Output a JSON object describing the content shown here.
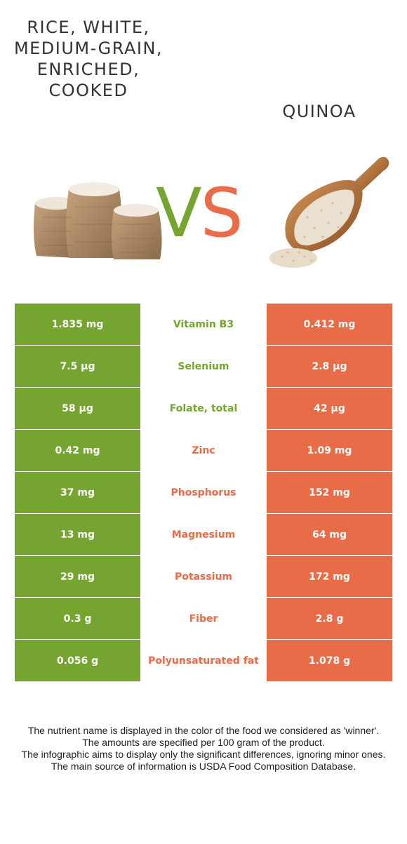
{
  "food_left": {
    "name": "Rice, white, medium-grain, enriched, cooked",
    "color": "#75a530"
  },
  "food_right": {
    "name": "Quinoa",
    "color": "#e96c48"
  },
  "vs": {
    "v": "V",
    "s": "S"
  },
  "rows": [
    {
      "nutrient": "Vitamin B3",
      "left": "1.835 mg",
      "right": "0.412 mg",
      "winner": "left"
    },
    {
      "nutrient": "Selenium",
      "left": "7.5 µg",
      "right": "2.8 µg",
      "winner": "left"
    },
    {
      "nutrient": "Folate, total",
      "left": "58 µg",
      "right": "42 µg",
      "winner": "left"
    },
    {
      "nutrient": "Zinc",
      "left": "0.42 mg",
      "right": "1.09 mg",
      "winner": "right"
    },
    {
      "nutrient": "Phosphorus",
      "left": "37 mg",
      "right": "152 mg",
      "winner": "right"
    },
    {
      "nutrient": "Magnesium",
      "left": "13 mg",
      "right": "64 mg",
      "winner": "right"
    },
    {
      "nutrient": "Potassium",
      "left": "29 mg",
      "right": "172 mg",
      "winner": "right"
    },
    {
      "nutrient": "Fiber",
      "left": "0.3 g",
      "right": "2.8 g",
      "winner": "right"
    },
    {
      "nutrient": "Polyunsaturated fat",
      "left": "0.056 g",
      "right": "1.078 g",
      "winner": "right"
    }
  ],
  "footer": [
    "The nutrient name is displayed in the color of the food we considered as 'winner'.",
    "The amounts are specified per 100 gram of the product.",
    "The infographic aims to display only the significant differences, ignoring minor ones.",
    "The main source of information is USDA Food Composition Database."
  ]
}
